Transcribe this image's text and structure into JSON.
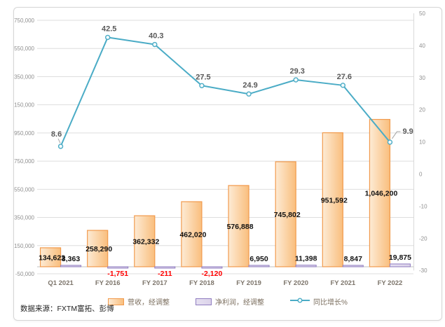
{
  "source_note": "数据来源：FXTM富拓、彭博",
  "chart_data": {
    "type": "bar",
    "subtype": "combo-bar-line-dual-axis",
    "categories": [
      "Q1 2021",
      "FY 2016",
      "FY 2017",
      "FY 2018",
      "FY 2019",
      "FY 2020",
      "FY 2021",
      "FY 2022"
    ],
    "series": [
      {
        "name": "营收，经调整",
        "type": "bar",
        "axis": "left",
        "values": [
          134622,
          258290,
          362332,
          462020,
          576888,
          745802,
          951592,
          1046200
        ],
        "labels": [
          "134,622",
          "258,290",
          "362,332",
          "462,020",
          "576,888",
          "745,802",
          "951,592",
          "1,046,200"
        ],
        "fill_light": "#FDEBD5",
        "fill_dark": "#F9BE7D",
        "border": "#F19A4D",
        "label_color": "#111111"
      },
      {
        "name": "净利润，经调整",
        "type": "bar",
        "axis": "left",
        "values": [
          3363,
          -1751,
          -211,
          -2120,
          6950,
          11398,
          8847,
          19875
        ],
        "labels": [
          "3,363",
          "-1,751",
          "-211",
          "-2,120",
          "6,950",
          "11,398",
          "8,847",
          "19,875"
        ],
        "fill_light": "#E6E0F1",
        "fill_dark": "#DCD3EA",
        "border": "#8F7CC0",
        "label_color": "#111111",
        "negative_label_color": "#FF0000"
      },
      {
        "name": "同比增长%",
        "type": "line",
        "axis": "right",
        "values": [
          8.6,
          42.5,
          40.3,
          27.5,
          24.9,
          29.3,
          27.6,
          9.9
        ],
        "labels": [
          "8.6",
          "42.5",
          "40.3",
          "27.5",
          "24.9",
          "29.3",
          "27.6",
          "9.9"
        ],
        "color": "#4BACC6",
        "marker_fill": "#F3FAFC",
        "label_color": "#5A5A5A"
      }
    ],
    "left_axis": {
      "min": -50000,
      "max": 1750000,
      "step": 200000,
      "tick_labels": [
        "1,750,000",
        "1,550,000",
        "1,350,000",
        "1,150,000",
        "950,000",
        "750,000",
        "550,000",
        "350,000",
        "150,000",
        "-50,000"
      ]
    },
    "right_axis": {
      "min": -30,
      "max": 50,
      "step": 10,
      "tick_labels": [
        "50",
        "40",
        "30",
        "20",
        "10",
        "0",
        "-10",
        "-20",
        "-30"
      ]
    },
    "grid": true,
    "legend_position": "bottom",
    "grid_color": "#DEDEDE",
    "axis_line_color": "#C0C0C0",
    "tick_label_color": "#8F8F8F",
    "category_label_color": "#7D756B",
    "leader_line_color": "#A6A6A6"
  }
}
